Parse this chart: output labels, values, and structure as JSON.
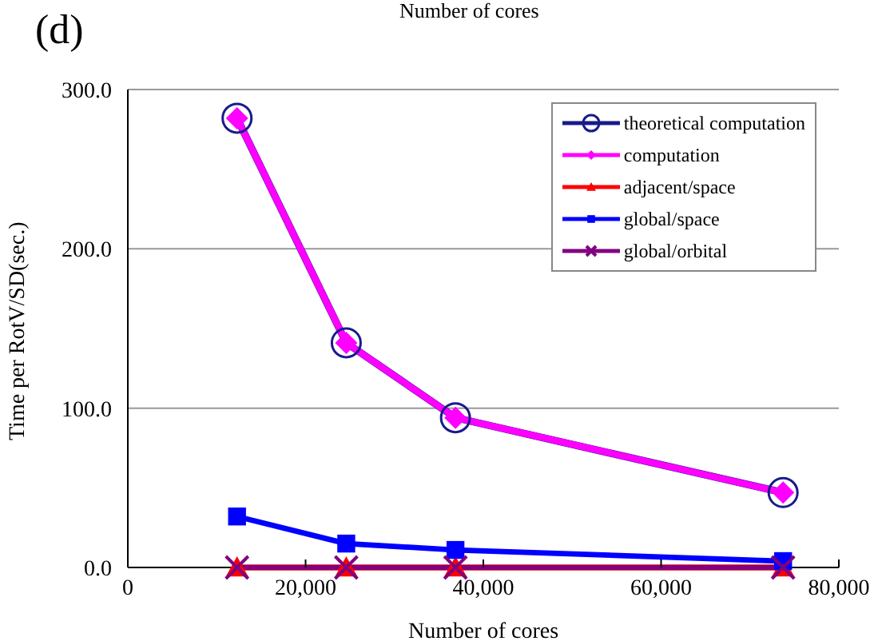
{
  "chart_data": {
    "type": "line",
    "title": "(d)",
    "annotations": [
      "Number of cores"
    ],
    "xlabel": "Number of cores",
    "ylabel": "Time per RotV/SD(sec.)",
    "x": [
      12288,
      24576,
      36864,
      73728
    ],
    "series": [
      {
        "name": "theoretical computation",
        "color": "#1a1a8c",
        "marker": "circle",
        "values": [
          282,
          141,
          94,
          47
        ]
      },
      {
        "name": "computation",
        "color": "#ff00ff",
        "marker": "diamond",
        "values": [
          282,
          141,
          94,
          47
        ]
      },
      {
        "name": "adjacent/space",
        "color": "#ff0000",
        "marker": "triangle",
        "values": [
          0,
          0,
          0,
          0
        ]
      },
      {
        "name": "global/space",
        "color": "#0000ff",
        "marker": "square",
        "values": [
          32,
          15,
          11,
          4
        ]
      },
      {
        "name": "global/orbital",
        "color": "#800080",
        "marker": "cross",
        "values": [
          0,
          0,
          0,
          0
        ]
      }
    ],
    "xlim": [
      0,
      80000
    ],
    "xticks": [
      0,
      {
        "value": 20000,
        "label": "20,000"
      },
      {
        "value": 40000,
        "label": "40,000"
      },
      {
        "value": 60000,
        "label": "60,000"
      },
      {
        "value": 80000,
        "label": "80,000"
      }
    ],
    "ylim": [
      0,
      300
    ],
    "yticks": [
      {
        "value": 0,
        "label": "0.0"
      },
      {
        "value": 100,
        "label": "100.0"
      },
      {
        "value": 200,
        "label": "200.0"
      },
      {
        "value": 300,
        "label": "300.0"
      }
    ],
    "grid": "y",
    "legend": "top right"
  }
}
